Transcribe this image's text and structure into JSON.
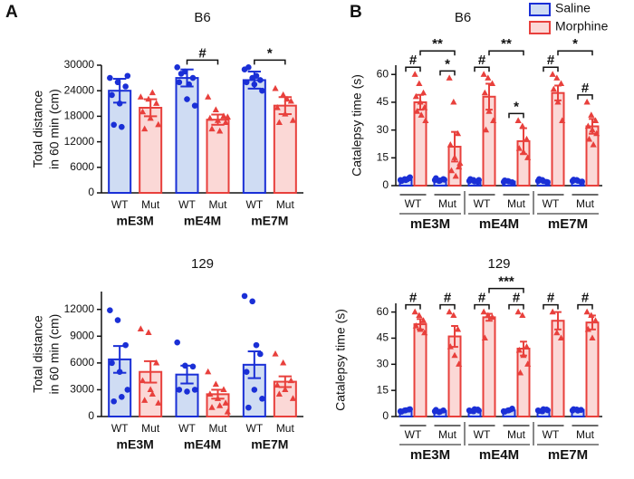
{
  "panel_labels": [
    "A",
    "B"
  ],
  "chart_data": [
    {
      "type": "bar",
      "title": "B6",
      "ylabel": [
        "Total distance",
        "in 60 min (cm)"
      ],
      "groups": [
        "mE3M",
        "mE4M",
        "mE7M"
      ],
      "subgroups": [
        "WT",
        "Mut"
      ],
      "ylim": [
        0,
        30000
      ],
      "yticks": [
        0,
        6000,
        12000,
        18000,
        24000,
        30000
      ],
      "series": [
        {
          "color": "#1a2fd6",
          "fill": "#cfdcf3",
          "values": [
            24000,
            27000,
            26500
          ],
          "errors": [
            2800,
            2000,
            2000
          ],
          "points": [
            [
              27000,
              26000,
              25000,
              23000,
              21000,
              27500,
              16000,
              15500
            ],
            [
              29500,
              28500,
              27000,
              26000,
              22000,
              20500,
              28000,
              25500
            ],
            [
              29000,
              27000,
              26500,
              26000,
              25500,
              24000,
              29500,
              27500
            ]
          ]
        },
        {
          "color": "#e8403c",
          "fill": "#fbd8d6",
          "values": [
            20000,
            17200,
            20500
          ],
          "errors": [
            2000,
            1200,
            2000
          ],
          "points": [
            [
              22500,
              22000,
              21000,
              19000,
              17500,
              16000,
              15000,
              23500
            ],
            [
              22500,
              19500,
              18000,
              17500,
              17000,
              16500,
              15000,
              14500,
              17800
            ],
            [
              24500,
              23000,
              21500,
              20000,
              18500,
              17000,
              16500,
              22000
            ]
          ]
        }
      ],
      "annotations": [
        {
          "text": "#",
          "from": 2,
          "to": 3
        },
        {
          "text": "*",
          "from": 4,
          "to": 5
        }
      ]
    },
    {
      "type": "bar",
      "title": "129",
      "ylabel": [
        "Total distance",
        "in 60 min (cm)"
      ],
      "groups": [
        "mE3M",
        "mE4M",
        "mE7M"
      ],
      "subgroups": [
        "WT",
        "Mut"
      ],
      "ylim": [
        0,
        14000
      ],
      "yticks": [
        0,
        3000,
        6000,
        9000,
        12000
      ],
      "series": [
        {
          "color": "#1a2fd6",
          "fill": "#cfdcf3",
          "values": [
            6400,
            4700,
            5800
          ],
          "errors": [
            1500,
            1000,
            1500
          ],
          "points": [
            [
              11900,
              10800,
              8000,
              6000,
              5000,
              3000,
              1700,
              2200
            ],
            [
              8300,
              5700,
              5600,
              3000,
              2800,
              3000
            ],
            [
              13500,
              12900,
              7000,
              5000,
              3000,
              2000,
              1000,
              8000
            ]
          ]
        },
        {
          "color": "#e8403c",
          "fill": "#fbd8d6",
          "values": [
            5000,
            2500,
            3900
          ],
          "errors": [
            1200,
            500,
            600
          ],
          "points": [
            [
              9800,
              9400,
              6000,
              4000,
              3000,
              1500,
              1800,
              2500
            ],
            [
              5000,
              3600,
              3000,
              2500,
              2000,
              1500,
              1000,
              1200,
              500
            ],
            [
              7000,
              6000,
              4000,
              3500,
              3000,
              2000,
              2500
            ]
          ]
        }
      ],
      "annotations": []
    },
    {
      "type": "bar",
      "title": "B6",
      "ylabel": [
        "Catalepsy time (s)"
      ],
      "legend": "upper right",
      "groups": [
        "mE3M",
        "mE4M",
        "mE7M"
      ],
      "subgroups": [
        "WT",
        "Mut"
      ],
      "ylim": [
        0,
        65
      ],
      "yticks": [
        0,
        15,
        30,
        45,
        60
      ],
      "series": [
        {
          "name": "Saline",
          "color": "#1a2fd6",
          "fill": "#cfdcf3",
          "values": [
            3,
            3,
            2.5,
            2.2,
            2.5,
            2.5
          ],
          "errors": [
            0.5,
            0.5,
            0.4,
            0.3,
            0.4,
            0.4
          ],
          "points": [
            [
              3,
              3.5,
              4,
              2.5,
              3,
              4.5
            ],
            [
              3,
              2.5,
              3.5,
              4,
              2.8,
              3.2
            ],
            [
              2.5,
              3,
              2,
              3.5,
              2.2,
              3
            ],
            [
              2,
              2.5,
              1.8,
              2.8,
              2.2
            ],
            [
              2.5,
              3,
              2,
              3.5,
              2.4,
              1.8
            ],
            [
              2.5,
              3,
              2,
              3.2,
              2.6,
              2.2
            ]
          ]
        },
        {
          "name": "Morphine",
          "color": "#e8403c",
          "fill": "#fbd8d6",
          "values": [
            45,
            21,
            48,
            24,
            50,
            32
          ],
          "errors": [
            4,
            8,
            7,
            7,
            4,
            4
          ],
          "points": [
            [
              60,
              55,
              50,
              48,
              45,
              42,
              40,
              38,
              35
            ],
            [
              58,
              45,
              28,
              22,
              15,
              10,
              8,
              5,
              12
            ],
            [
              60,
              58,
              55,
              50,
              40,
              35,
              30
            ],
            [
              35,
              32,
              25,
              20,
              18,
              15
            ],
            [
              60,
              58,
              55,
              52,
              45,
              35
            ],
            [
              45,
              38,
              35,
              32,
              30,
              28,
              25,
              22
            ]
          ]
        }
      ],
      "annotations": [
        {
          "text": "#",
          "from": 0,
          "to": 1
        },
        {
          "text": "*",
          "from": 2,
          "to": 3
        },
        {
          "text": "**",
          "from": 1,
          "to": 3
        },
        {
          "text": "#",
          "from": 4,
          "to": 5
        },
        {
          "text": "*",
          "from": 6,
          "to": 7
        },
        {
          "text": "**",
          "from": 5,
          "to": 7
        },
        {
          "text": "#",
          "from": 8,
          "to": 9
        },
        {
          "text": "#",
          "from": 10,
          "to": 11
        },
        {
          "text": "*",
          "from": 9,
          "to": 11
        }
      ]
    },
    {
      "type": "bar",
      "title": "129",
      "ylabel": [
        "Catalepsy time (s)"
      ],
      "groups": [
        "mE3M",
        "mE4M",
        "mE7M"
      ],
      "subgroups": [
        "WT",
        "Mut"
      ],
      "ylim": [
        0,
        65
      ],
      "yticks": [
        0,
        15,
        30,
        45,
        60
      ],
      "series": [
        {
          "color": "#1a2fd6",
          "fill": "#cfdcf3",
          "values": [
            3.5,
            3.2,
            3.5,
            3.5,
            3.5,
            3.8
          ],
          "errors": [
            0.4,
            0.4,
            0.4,
            0.5,
            0.4,
            0.3
          ],
          "points": [
            [
              3,
              3.5,
              4,
              2.8,
              3.6,
              4.2
            ],
            [
              3,
              2.5,
              3.5,
              3.8,
              2.8
            ],
            [
              3.5,
              3,
              4,
              3.2,
              4.2,
              3.4
            ],
            [
              3,
              3.5,
              4.5,
              2.8,
              3.6
            ],
            [
              3.5,
              3,
              4,
              3.2,
              4.2,
              3.6
            ],
            [
              3.5,
              4,
              3.8,
              4.2,
              3.4
            ]
          ]
        },
        {
          "color": "#e8403c",
          "fill": "#fbd8d6",
          "values": [
            53,
            46,
            57,
            39,
            55,
            54
          ],
          "errors": [
            3,
            6,
            2,
            4,
            5,
            4
          ],
          "points": [
            [
              60,
              58,
              55,
              52,
              50,
              48
            ],
            [
              60,
              58,
              50,
              40,
              35,
              30
            ],
            [
              60,
              58,
              57,
              45
            ],
            [
              60,
              58,
              40,
              38,
              35,
              30,
              25
            ],
            [
              60,
              48,
              45
            ],
            [
              60,
              58,
              55,
              50,
              45
            ]
          ]
        }
      ],
      "annotations": [
        {
          "text": "#",
          "from": 0,
          "to": 1
        },
        {
          "text": "#",
          "from": 2,
          "to": 3
        },
        {
          "text": "#",
          "from": 4,
          "to": 5
        },
        {
          "text": "#",
          "from": 6,
          "to": 7
        },
        {
          "text": "***",
          "from": 5,
          "to": 7
        },
        {
          "text": "#",
          "from": 8,
          "to": 9
        },
        {
          "text": "#",
          "from": 10,
          "to": 11
        }
      ]
    }
  ]
}
